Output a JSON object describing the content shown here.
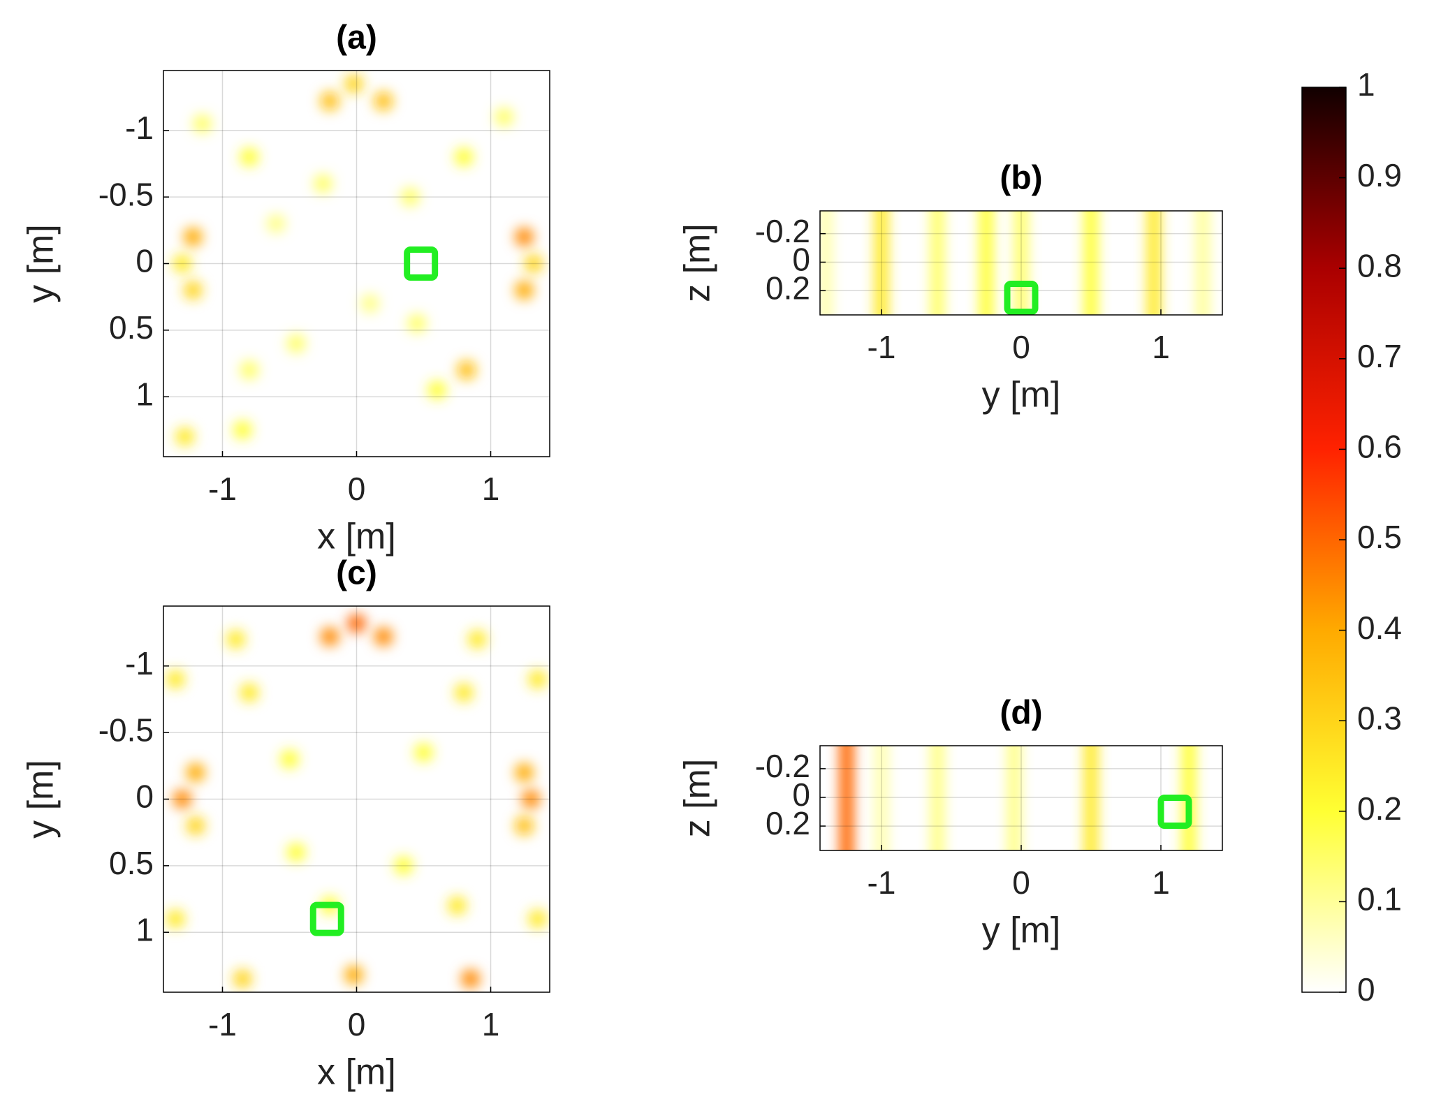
{
  "chart_data": [
    {
      "type": "heatmap",
      "title": "(a)",
      "xlabel": "x [m]",
      "ylabel": "y [m]",
      "xlim": [
        -1.44,
        1.44
      ],
      "ylim": [
        -1.45,
        1.45
      ],
      "y_reversed": true,
      "grid": true,
      "xticks": [
        -1,
        0,
        1
      ],
      "yticks": [
        -1,
        -0.5,
        0,
        0.5,
        1
      ],
      "hotspots": {
        "x": [
          -1.22,
          -1.3,
          -1.22,
          1.25,
          1.32,
          1.25,
          -0.02,
          -0.2,
          0.2,
          0.82,
          -1.28,
          -0.85,
          -0.8,
          0.8,
          -0.8,
          0.6,
          -0.45,
          0.4,
          -0.6,
          0.1,
          0.45,
          -0.25,
          1.1,
          -1.15
        ],
        "y": [
          -0.2,
          0,
          0.2,
          -0.2,
          0,
          0.2,
          -1.35,
          -1.22,
          -1.22,
          0.8,
          1.3,
          1.25,
          -0.8,
          -0.8,
          0.8,
          0.95,
          0.6,
          -0.5,
          -0.3,
          0.3,
          0.45,
          -0.6,
          -1.1,
          -1.05
        ],
        "values": [
          0.4,
          0.25,
          0.3,
          0.45,
          0.3,
          0.4,
          0.3,
          0.35,
          0.35,
          0.35,
          0.25,
          0.2,
          0.2,
          0.2,
          0.15,
          0.2,
          0.15,
          0.15,
          0.12,
          0.12,
          0.15,
          0.15,
          0.15,
          0.15
        ]
      },
      "marker": {
        "x": 0.48,
        "y": 0.0,
        "color": "#22ee22"
      }
    },
    {
      "type": "heatmap",
      "title": "(b)",
      "xlabel": "y [m]",
      "ylabel": "z [m]",
      "xlim": [
        -1.44,
        1.44
      ],
      "ylim": [
        -0.36,
        0.37
      ],
      "y_reversed": true,
      "grid": true,
      "xticks": [
        -1,
        0,
        1
      ],
      "yticks": [
        -0.2,
        0,
        0.2
      ],
      "stripes": {
        "x": [
          -1.4,
          -1.0,
          -0.6,
          -0.25,
          0.0,
          0.5,
          0.95,
          1.3
        ],
        "values": [
          0.08,
          0.25,
          0.15,
          0.2,
          0.15,
          0.2,
          0.25,
          0.1
        ]
      },
      "marker": {
        "x": 0.0,
        "y": 0.25,
        "color": "#22ee22"
      }
    },
    {
      "type": "heatmap",
      "title": "(c)",
      "xlabel": "x [m]",
      "ylabel": "y [m]",
      "xlim": [
        -1.44,
        1.44
      ],
      "ylim": [
        -1.45,
        1.45
      ],
      "y_reversed": true,
      "grid": true,
      "xticks": [
        -1,
        0,
        1
      ],
      "yticks": [
        -1,
        -0.5,
        0,
        0.5,
        1
      ],
      "hotspots": {
        "x": [
          -1.3,
          -1.2,
          -1.2,
          1.25,
          1.3,
          1.25,
          0.0,
          -0.2,
          0.2,
          -0.02,
          0.85,
          -0.85,
          -1.35,
          1.35,
          -0.8,
          0.8,
          -0.9,
          0.9,
          -1.35,
          1.35,
          0.35,
          -0.45,
          0.5,
          -0.2,
          0.75,
          -0.5
        ],
        "y": [
          0,
          -0.2,
          0.2,
          -0.2,
          0,
          0.2,
          -1.32,
          -1.22,
          -1.22,
          1.32,
          1.35,
          1.35,
          0.9,
          0.9,
          -0.8,
          -0.8,
          -1.2,
          -1.2,
          -0.9,
          -0.9,
          0.5,
          0.4,
          -0.35,
          0.8,
          0.8,
          -0.3
        ],
        "values": [
          0.45,
          0.4,
          0.3,
          0.4,
          0.45,
          0.35,
          0.5,
          0.45,
          0.45,
          0.4,
          0.45,
          0.3,
          0.25,
          0.25,
          0.25,
          0.25,
          0.25,
          0.25,
          0.25,
          0.25,
          0.2,
          0.2,
          0.2,
          0.2,
          0.25,
          0.2
        ]
      },
      "marker": {
        "x": -0.22,
        "y": 0.9,
        "color": "#22ee22"
      }
    },
    {
      "type": "heatmap",
      "title": "(d)",
      "xlabel": "y [m]",
      "ylabel": "z [m]",
      "xlim": [
        -1.44,
        1.44
      ],
      "ylim": [
        -0.36,
        0.37
      ],
      "y_reversed": true,
      "grid": true,
      "xticks": [
        -1,
        0,
        1
      ],
      "yticks": [
        -0.2,
        0,
        0.2
      ],
      "stripes": {
        "x": [
          -1.25,
          -1.0,
          -0.6,
          -0.05,
          0.5,
          1.2
        ],
        "values": [
          0.5,
          0.08,
          0.12,
          0.12,
          0.25,
          0.2
        ]
      },
      "marker": {
        "x": 1.1,
        "y": 0.1,
        "color": "#22ee22"
      }
    }
  ],
  "colorbar": {
    "lim": [
      0,
      1
    ],
    "ticks": [
      0,
      0.1,
      0.2,
      0.3,
      0.4,
      0.5,
      0.6,
      0.7,
      0.8,
      0.9,
      1
    ],
    "colormap": [
      "#ffffff",
      "#ffff33",
      "#ffaa00",
      "#ff2200",
      "#aa0000",
      "#110000"
    ]
  }
}
